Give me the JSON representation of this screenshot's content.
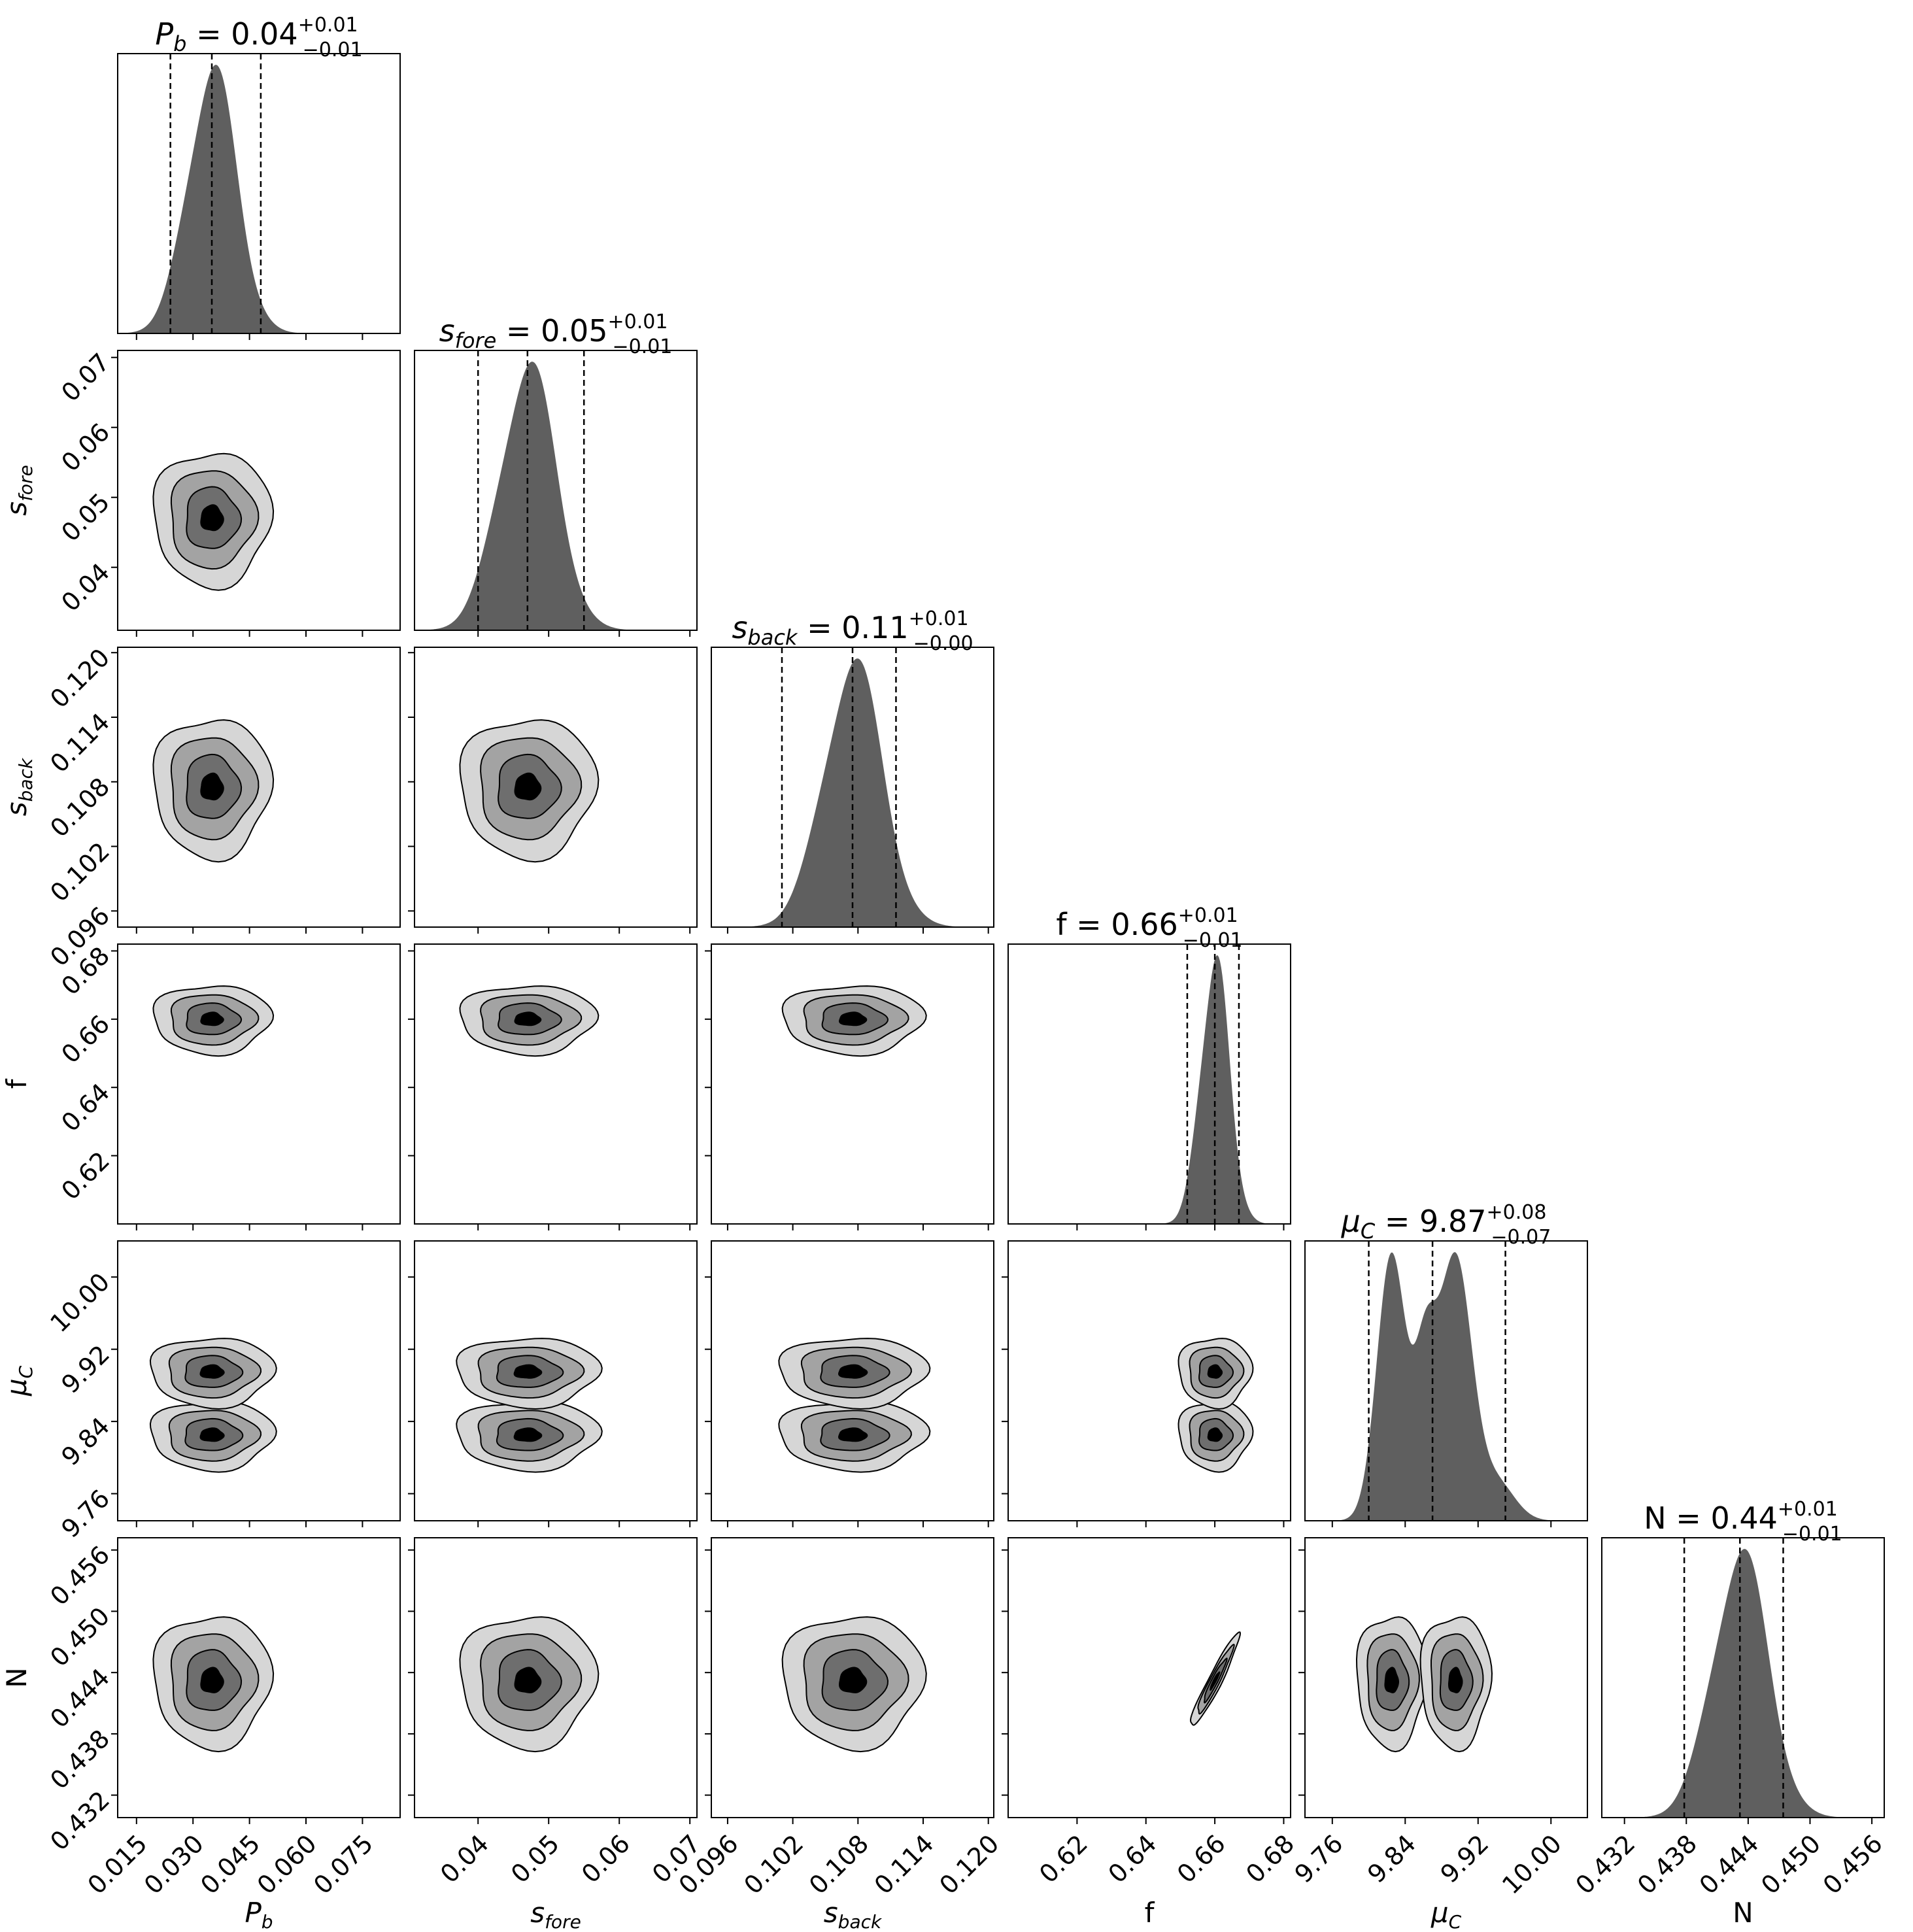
{
  "chart_data": {
    "type": "corner",
    "parameters": [
      {
        "label_base": "P",
        "label_sub": "b",
        "median": 0.035,
        "q_low": 0.024,
        "q_high": 0.048,
        "title_value": "0.04",
        "title_plus": "+0.01",
        "title_minus": "−0.01",
        "range": [
          0.01,
          0.085
        ],
        "ticks": [
          "0.015",
          "0.030",
          "0.045",
          "0.060",
          "0.075"
        ],
        "ticks_val": [
          0.015,
          0.03,
          0.045,
          0.06,
          0.075
        ],
        "sigma_plot": 0.0065
      },
      {
        "label_base": "s",
        "label_sub": "fore",
        "median": 0.047,
        "q_low": 0.04,
        "q_high": 0.055,
        "title_value": "0.05",
        "title_plus": "+0.01",
        "title_minus": "−0.01",
        "range": [
          0.031,
          0.071
        ],
        "ticks": [
          "0.04",
          "0.05",
          "0.06",
          "0.07"
        ],
        "ticks_val": [
          0.04,
          0.05,
          0.06,
          0.07
        ],
        "sigma_plot": 0.004
      },
      {
        "label_base": "s",
        "label_sub": "back",
        "median": 0.1075,
        "q_low": 0.101,
        "q_high": 0.1115,
        "title_value": "0.11",
        "title_plus": "+0.01",
        "title_minus": "−0.00",
        "range": [
          0.0945,
          0.1205
        ],
        "ticks": [
          "0.096",
          "0.102",
          "0.108",
          "0.114",
          "0.120"
        ],
        "ticks_val": [
          0.096,
          0.102,
          0.108,
          0.114,
          0.12
        ],
        "sigma_plot": 0.0027
      },
      {
        "label_base": "f",
        "label_sub": "",
        "median": 0.66,
        "q_low": 0.652,
        "q_high": 0.667,
        "title_value": "0.66",
        "title_plus": "+0.01",
        "title_minus": "−0.01",
        "range": [
          0.6,
          0.682
        ],
        "ticks": [
          "0.62",
          "0.64",
          "0.66",
          "0.68"
        ],
        "ticks_val": [
          0.62,
          0.64,
          0.66,
          0.68
        ],
        "sigma_plot": 0.0042
      },
      {
        "label_base": "μ",
        "label_sub": "C",
        "median": 9.87,
        "q_low": 9.8,
        "q_high": 9.95,
        "title_value": "9.87",
        "title_plus": "+0.08",
        "title_minus": "−0.07",
        "range": [
          9.73,
          10.04
        ],
        "ticks": [
          "9.76",
          "9.84",
          "9.92",
          "10.00"
        ],
        "ticks_val": [
          9.76,
          9.84,
          9.92,
          10.0
        ],
        "sigma_plot": 0.03
      },
      {
        "label_base": "N",
        "label_sub": "",
        "median": 0.4432,
        "q_low": 0.4378,
        "q_high": 0.4474,
        "title_value": "0.44",
        "title_plus": "+0.01",
        "title_minus": "−0.01",
        "range": [
          0.4298,
          0.4572
        ],
        "ticks": [
          "0.432",
          "0.438",
          "0.444",
          "0.450",
          "0.456"
        ],
        "ticks_val": [
          0.432,
          0.438,
          0.444,
          0.45,
          0.456
        ],
        "sigma_plot": 0.0027
      }
    ],
    "mu_modes": [
      9.825,
      9.895
    ],
    "mu_mode_weights": [
      0.5,
      0.5
    ],
    "f_N_correlation": 0.95,
    "contour_fill_colors": [
      "#d6d6d6",
      "#a3a3a3",
      "#6e6e6e",
      "#000000"
    ],
    "histogram_color": "#5f5f5f"
  }
}
